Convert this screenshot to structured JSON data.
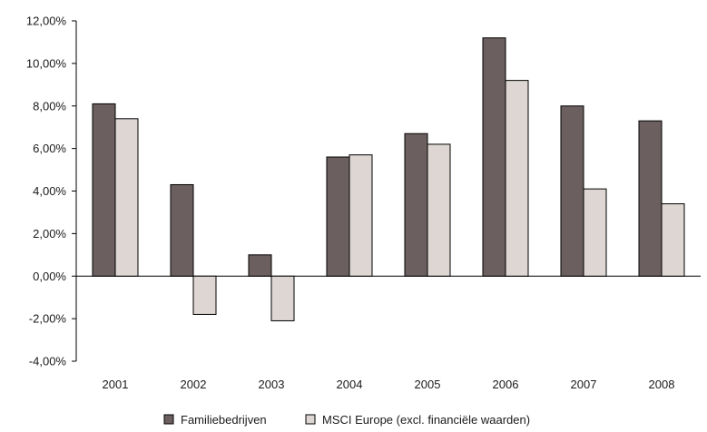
{
  "chart_data": {
    "type": "bar",
    "categories": [
      "2001",
      "2002",
      "2003",
      "2004",
      "2005",
      "2006",
      "2007",
      "2008"
    ],
    "series": [
      {
        "name": "Familiebedrijven",
        "color": "#6b5f5f",
        "values": [
          8.1,
          4.3,
          1.0,
          5.6,
          6.7,
          11.2,
          8.0,
          7.3
        ]
      },
      {
        "name": "MSCI Europe (excl. financiële waarden)",
        "color": "#ddd6d3",
        "values": [
          7.4,
          -1.8,
          -2.1,
          5.7,
          6.2,
          9.2,
          4.1,
          3.4
        ]
      }
    ],
    "ylim": [
      -4,
      12
    ],
    "y_ticks": [
      12,
      10,
      8,
      6,
      4,
      2,
      0,
      -2,
      -4
    ],
    "y_tick_labels": [
      "12,00%",
      "10,00%",
      "8,00%",
      "6,00%",
      "4,00%",
      "2,00%",
      "0,00%",
      "-2,00%",
      "-4,00%"
    ],
    "grid": false,
    "legend_position": "bottom"
  }
}
